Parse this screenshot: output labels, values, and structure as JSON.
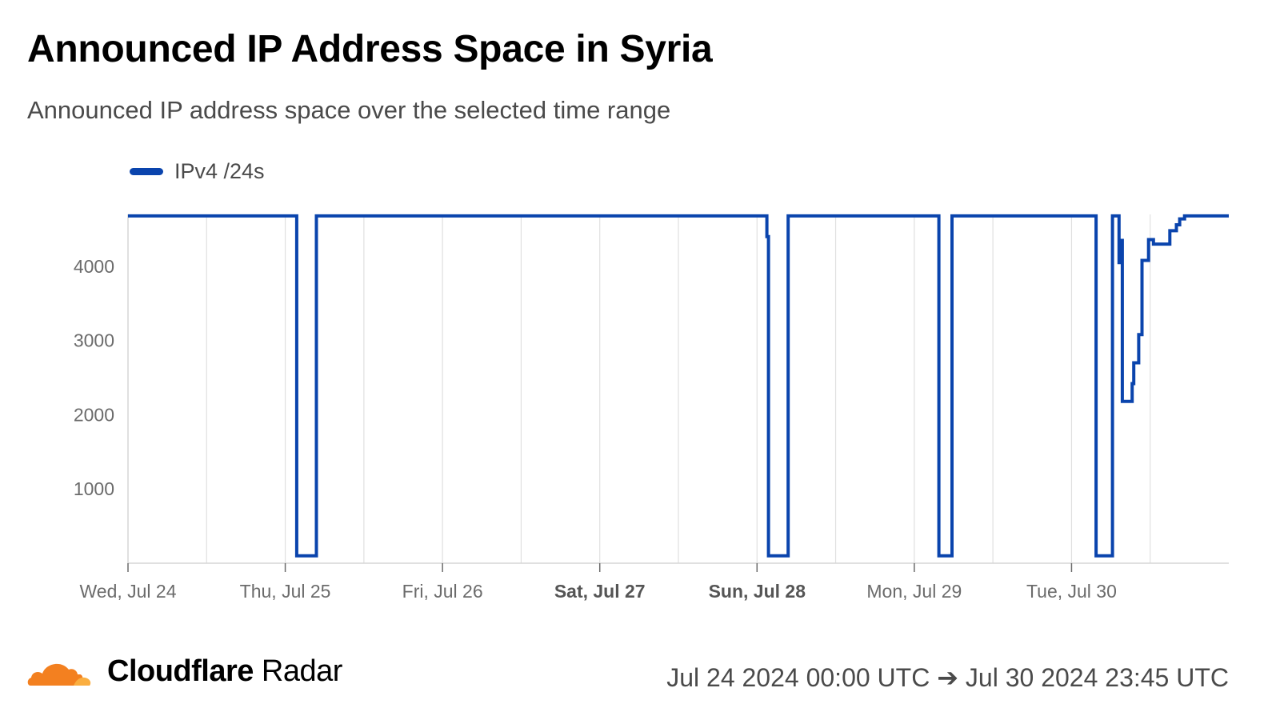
{
  "title": "Announced IP Address Space in Syria",
  "subtitle": "Announced IP address space over the selected time range",
  "footer": {
    "brand_name": "Cloudflare",
    "brand_product": "Radar",
    "logo_icon": "cloudflare-cloud-icon",
    "date_range": "Jul 24 2024 00:00 UTC ➔ Jul 30 2024 23:45 UTC"
  },
  "colors": {
    "series": "#0a44ad",
    "grid": "#e0e0e0",
    "axis_text": "#6b6b6b",
    "axis_text_bold": "#555555",
    "logo_orange": "#f38020",
    "logo_light": "#faae40"
  },
  "chart_data": {
    "type": "line",
    "legend": "top-left",
    "grid": true,
    "x_unit": "days",
    "x_label_note": "x values in day-offset units are not printed; ticks show dates",
    "xlim": [
      0,
      7
    ],
    "ylim": [
      0,
      4700
    ],
    "yticks": [
      1000,
      2000,
      3000,
      4000
    ],
    "xticks": [
      {
        "day": 0,
        "label": "Wed, Jul 24",
        "bold": false
      },
      {
        "day": 1,
        "label": "Thu, Jul 25",
        "bold": false
      },
      {
        "day": 2,
        "label": "Fri, Jul 26",
        "bold": false
      },
      {
        "day": 3,
        "label": "Sat, Jul 27",
        "bold": true
      },
      {
        "day": 4,
        "label": "Sun, Jul 28",
        "bold": true
      },
      {
        "day": 5,
        "label": "Mon, Jul 29",
        "bold": false
      },
      {
        "day": 6,
        "label": "Tue, Jul 30",
        "bold": false
      }
    ],
    "series": [
      {
        "name": "IPv4 /24s",
        "step": true,
        "points": [
          [
            "Jul 24 00:00",
            4680
          ],
          [
            "Jul 25 01:30",
            4680
          ],
          [
            "Jul 25 01:45",
            100
          ],
          [
            "Jul 25 04:30",
            100
          ],
          [
            "Jul 25 04:45",
            4680
          ],
          [
            "Jul 28 01:15",
            4680
          ],
          [
            "Jul 28 01:30",
            4400
          ],
          [
            "Jul 28 01:45",
            100
          ],
          [
            "Jul 28 04:30",
            100
          ],
          [
            "Jul 28 04:45",
            4680
          ],
          [
            "Jul 29 03:30",
            4680
          ],
          [
            "Jul 29 03:45",
            100
          ],
          [
            "Jul 29 05:30",
            100
          ],
          [
            "Jul 29 05:45",
            4680
          ],
          [
            "Jul 30 03:30",
            4680
          ],
          [
            "Jul 30 03:45",
            100
          ],
          [
            "Jul 30 06:00",
            100
          ],
          [
            "Jul 30 06:15",
            4680
          ],
          [
            "Jul 30 07:00",
            4680
          ],
          [
            "Jul 30 07:15",
            4050
          ],
          [
            "Jul 30 07:30",
            4350
          ],
          [
            "Jul 30 07:45",
            2180
          ],
          [
            "Jul 30 09:00",
            2180
          ],
          [
            "Jul 30 09:15",
            2420
          ],
          [
            "Jul 30 09:30",
            2700
          ],
          [
            "Jul 30 10:15",
            3080
          ],
          [
            "Jul 30 10:45",
            4080
          ],
          [
            "Jul 30 11:45",
            4360
          ],
          [
            "Jul 30 12:30",
            4300
          ],
          [
            "Jul 30 15:00",
            4480
          ],
          [
            "Jul 30 16:00",
            4560
          ],
          [
            "Jul 30 16:30",
            4640
          ],
          [
            "Jul 30 17:15",
            4680
          ],
          [
            "Jul 30 23:45",
            4680
          ]
        ]
      }
    ]
  }
}
